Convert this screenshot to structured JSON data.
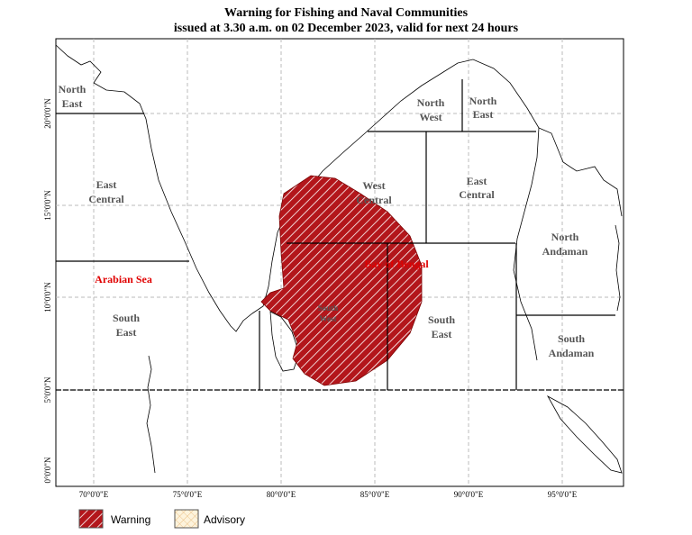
{
  "header": {
    "title": "Warning for Fishing and Naval Communities",
    "subtitle": "issued at 3.30 a.m.  on 02 December 2023, valid for next 24 hours"
  },
  "map": {
    "longitude_labels": [
      "70°0'0\"E",
      "75°0'0\"E",
      "80°0'0\"E",
      "85°0'0\"E",
      "90°0'0\"E",
      "95°0'0\"E"
    ],
    "latitude_labels": [
      "20°0'0\"N",
      "15°0'0\"N",
      "10°0'0\"N",
      "5°0'0\"N",
      "0°0'0\"N"
    ],
    "regions": [
      {
        "lines": [
          "North",
          "East"
        ]
      },
      {
        "lines": [
          "East",
          "Central"
        ]
      },
      {
        "lines": [
          "South",
          "East"
        ]
      },
      {
        "lines": [
          "North",
          "West"
        ]
      },
      {
        "lines": [
          "North",
          "East"
        ]
      },
      {
        "lines": [
          "West",
          "Central"
        ]
      },
      {
        "lines": [
          "East",
          "Central"
        ]
      },
      {
        "lines": [
          "South",
          "West"
        ]
      },
      {
        "lines": [
          "South",
          "East"
        ]
      },
      {
        "lines": [
          "North",
          "Andaman"
        ]
      },
      {
        "lines": [
          "South",
          "Andaman"
        ]
      }
    ],
    "sea_labels": [
      "Arabian Sea",
      "Bay of Bengal"
    ]
  },
  "legend": {
    "items": [
      "Warning",
      "Advisory"
    ]
  }
}
